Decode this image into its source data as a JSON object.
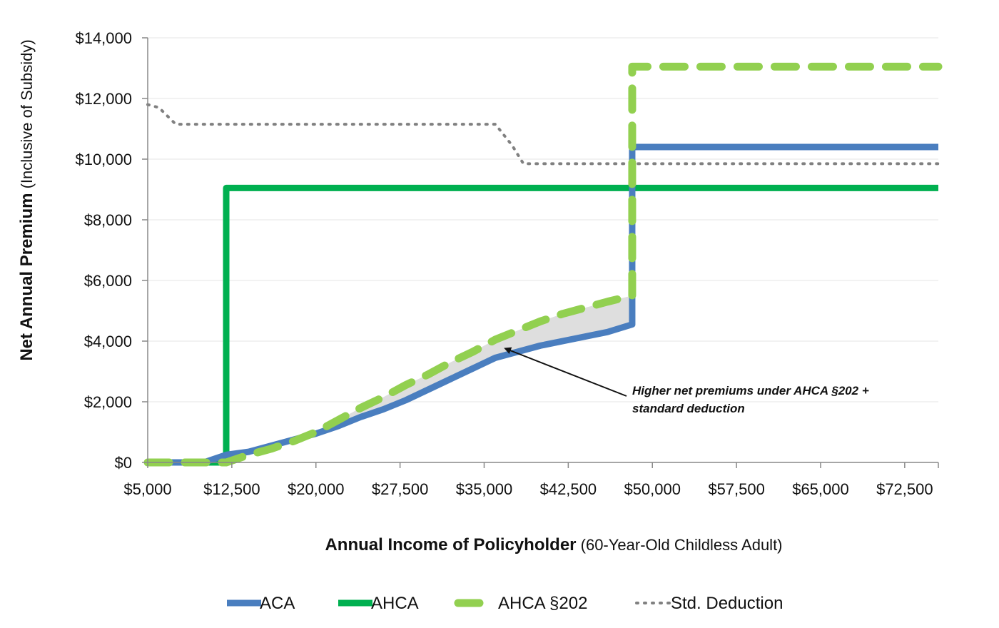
{
  "chart_data": {
    "type": "line",
    "title": "",
    "xlabel": {
      "bold": "Annual Income of Policyholder",
      "normal": " (60-Year-Old Childless Adult)"
    },
    "ylabel": {
      "bold": "Net Annual Premium",
      "normal": " (Inclusive of Subsidy)"
    },
    "xlim": [
      5000,
      75500
    ],
    "ylim": [
      0,
      14000
    ],
    "x_ticks": [
      5000,
      12500,
      20000,
      27500,
      35000,
      42500,
      50000,
      57500,
      65000,
      72500
    ],
    "x_tick_labels": [
      "$5,000",
      "$12,500",
      "$20,000",
      "$27,500",
      "$35,000",
      "$42,500",
      "$50,000",
      "$57,500",
      "$65,000",
      "$72,500"
    ],
    "y_ticks": [
      0,
      2000,
      4000,
      6000,
      8000,
      10000,
      12000,
      14000
    ],
    "y_tick_labels": [
      "$0",
      "$2,000",
      "$4,000",
      "$6,000",
      "$8,000",
      "$10,000",
      "$12,000",
      "$14,000"
    ],
    "grid": true,
    "legend_position": "bottom",
    "series": [
      {
        "name": "ACA",
        "color": "#4a7ebf",
        "style": "solid",
        "points": [
          [
            5000,
            0
          ],
          [
            10000,
            0
          ],
          [
            12000,
            250
          ],
          [
            14000,
            350
          ],
          [
            16000,
            550
          ],
          [
            18000,
            750
          ],
          [
            20000,
            950
          ],
          [
            22000,
            1200
          ],
          [
            24000,
            1500
          ],
          [
            26000,
            1750
          ],
          [
            28000,
            2050
          ],
          [
            30000,
            2400
          ],
          [
            32000,
            2750
          ],
          [
            34000,
            3100
          ],
          [
            36000,
            3450
          ],
          [
            38000,
            3650
          ],
          [
            40000,
            3850
          ],
          [
            42000,
            4000
          ],
          [
            44000,
            4150
          ],
          [
            46000,
            4300
          ],
          [
            48200,
            4550
          ],
          [
            48200,
            10400
          ],
          [
            75500,
            10400
          ]
        ]
      },
      {
        "name": "AHCA",
        "color": "#00b050",
        "style": "solid",
        "points": [
          [
            5000,
            0
          ],
          [
            12000,
            0
          ],
          [
            12000,
            9050
          ],
          [
            75500,
            9050
          ]
        ]
      },
      {
        "name": "AHCA §202",
        "color": "#92d050",
        "style": "dashed",
        "points": [
          [
            5000,
            0
          ],
          [
            12000,
            0
          ],
          [
            14000,
            250
          ],
          [
            16000,
            450
          ],
          [
            18000,
            700
          ],
          [
            20000,
            1000
          ],
          [
            22000,
            1400
          ],
          [
            24000,
            1800
          ],
          [
            26000,
            2150
          ],
          [
            28000,
            2550
          ],
          [
            30000,
            2900
          ],
          [
            32000,
            3300
          ],
          [
            34000,
            3650
          ],
          [
            36000,
            4050
          ],
          [
            38000,
            4350
          ],
          [
            40000,
            4650
          ],
          [
            42000,
            4900
          ],
          [
            44000,
            5100
          ],
          [
            46000,
            5300
          ],
          [
            48200,
            5500
          ],
          [
            48200,
            13050
          ],
          [
            75500,
            13050
          ]
        ]
      },
      {
        "name": "Std. Deduction",
        "color": "#808080",
        "style": "dotted",
        "points": [
          [
            5000,
            11800
          ],
          [
            6000,
            11700
          ],
          [
            7500,
            11150
          ],
          [
            36000,
            11150
          ],
          [
            37500,
            10450
          ],
          [
            38500,
            9850
          ],
          [
            75500,
            9850
          ]
        ]
      }
    ],
    "annotations": [
      {
        "text_lines": [
          "Higher net premiums under AHCA §202 +",
          "standard deduction"
        ],
        "arrow_to": [
          36500,
          3850
        ]
      }
    ]
  }
}
